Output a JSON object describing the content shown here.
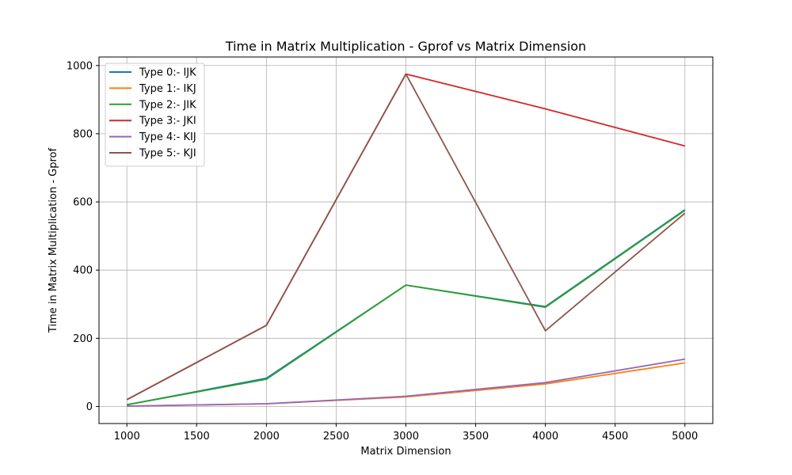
{
  "chart_data": {
    "type": "line",
    "title": "Time in Matrix Multiplication - Gprof vs Matrix Dimension",
    "xlabel": "Matrix Dimension",
    "ylabel": "Time in Matrix Multiplication - Gprof",
    "xlim": [
      800,
      5200
    ],
    "ylim": [
      -50,
      1025
    ],
    "x_ticks": [
      1000,
      1500,
      2000,
      2500,
      3000,
      3500,
      4000,
      4500,
      5000
    ],
    "y_ticks": [
      0,
      200,
      400,
      600,
      800,
      1000
    ],
    "grid": true,
    "legend_position": "top-left",
    "x": [
      1000,
      2000,
      3000,
      4000,
      5000
    ],
    "series": [
      {
        "name": "Type 0:- IJK",
        "color": "#1f77b4",
        "values": [
          5,
          83,
          356,
          293,
          577
        ]
      },
      {
        "name": "Type 1:- IKJ",
        "color": "#ff7f0e",
        "values": [
          1,
          8,
          28,
          66,
          128
        ]
      },
      {
        "name": "Type 2:- JIK",
        "color": "#2ca02c",
        "values": [
          5,
          80,
          356,
          291,
          575
        ]
      },
      {
        "name": "Type 3:- JKI",
        "color": "#d62728",
        "values": [
          20,
          238,
          975,
          873,
          764
        ]
      },
      {
        "name": "Type 4:- KIJ",
        "color": "#9467bd",
        "values": [
          1,
          8,
          30,
          70,
          139
        ]
      },
      {
        "name": "Type 5:- KJI",
        "color": "#8c564b",
        "values": [
          20,
          238,
          975,
          222,
          567
        ]
      }
    ]
  }
}
